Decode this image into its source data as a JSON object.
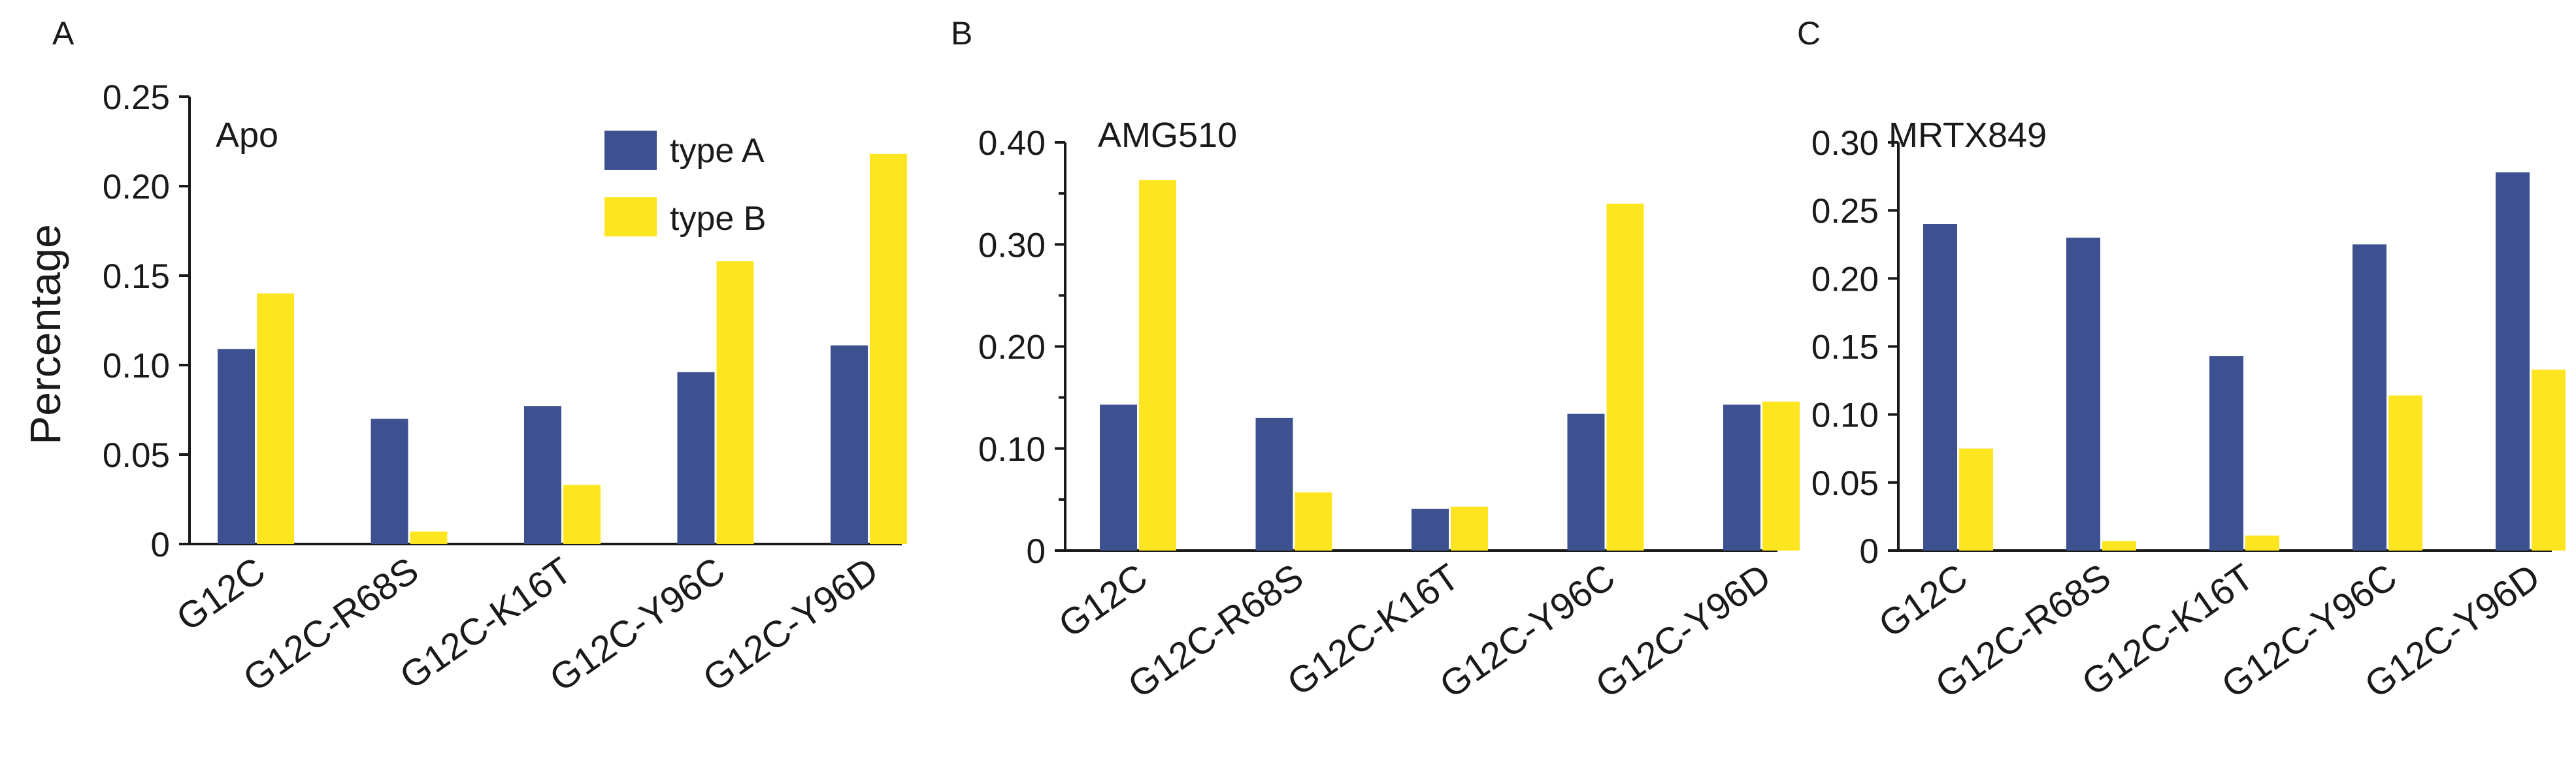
{
  "colors": {
    "typeA": "#3d5190",
    "typeB": "#fde61f"
  },
  "ylabel": "Percentage",
  "legend": [
    "type A",
    "type B"
  ],
  "chart_data": [
    {
      "panel": "A",
      "type": "bar",
      "title": "Apo",
      "ylabel": "Percentage",
      "categories": [
        "G12C",
        "G12C-R68S",
        "G12C-K16T",
        "G12C-Y96C",
        "G12C-Y96D"
      ],
      "series": [
        {
          "name": "type A",
          "values": [
            0.109,
            0.07,
            0.077,
            0.096,
            0.111
          ]
        },
        {
          "name": "type B",
          "values": [
            0.14,
            0.007,
            0.033,
            0.158,
            0.218
          ]
        }
      ],
      "ylim": [
        0,
        0.25
      ],
      "yticks": [
        0,
        0.05,
        0.1,
        0.15,
        0.2,
        0.25
      ],
      "yticklabels": [
        "0",
        "0.05",
        "0.10",
        "0.15",
        "0.20",
        "0.25"
      ],
      "legend_position": "top-right"
    },
    {
      "panel": "B",
      "type": "bar",
      "title": "AMG510",
      "ylabel": "",
      "categories": [
        "G12C",
        "G12C-R68S",
        "G12C-K16T",
        "G12C-Y96C",
        "G12C-Y96D"
      ],
      "series": [
        {
          "name": "type A",
          "values": [
            0.143,
            0.13,
            0.041,
            0.134,
            0.143
          ]
        },
        {
          "name": "type B",
          "values": [
            0.363,
            0.057,
            0.043,
            0.34,
            0.146
          ]
        }
      ],
      "ylim": [
        0,
        0.4
      ],
      "yticks": [
        0,
        0.1,
        0.2,
        0.3,
        0.4
      ],
      "minor_yticks": [
        0.05,
        0.15,
        0.25,
        0.35
      ],
      "yticklabels": [
        "0",
        "0.10",
        "0.20",
        "0.30",
        "0.40"
      ]
    },
    {
      "panel": "C",
      "type": "bar",
      "title": "MRTX849",
      "ylabel": "",
      "categories": [
        "G12C",
        "G12C-R68S",
        "G12C-K16T",
        "G12C-Y96C",
        "G12C-Y96D"
      ],
      "series": [
        {
          "name": "type A",
          "values": [
            0.24,
            0.23,
            0.143,
            0.225,
            0.278
          ]
        },
        {
          "name": "type B",
          "values": [
            0.075,
            0.007,
            0.011,
            0.114,
            0.133
          ]
        }
      ],
      "ylim": [
        0,
        0.3
      ],
      "yticks": [
        0,
        0.05,
        0.1,
        0.15,
        0.2,
        0.25,
        0.3
      ],
      "yticklabels": [
        "0",
        "0.05",
        "0.10",
        "0.15",
        "0.20",
        "0.25",
        "0.30"
      ]
    }
  ]
}
